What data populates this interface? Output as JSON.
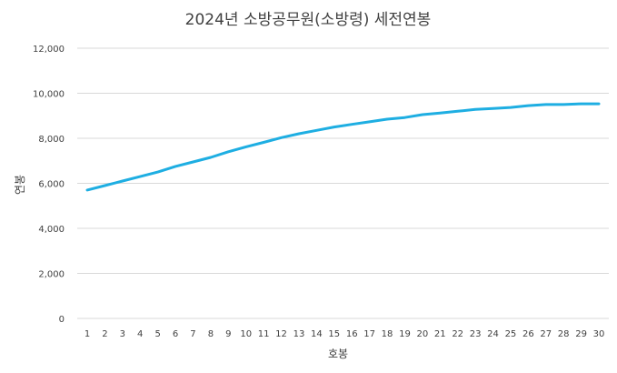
{
  "chart_data": {
    "type": "line",
    "title": "2024년 소방공무원(소방령) 세전연봉",
    "xlabel": "호봉",
    "ylabel": "연봉",
    "ylim": [
      0,
      12000
    ],
    "yticks": [
      "0",
      "2,000",
      "4,000",
      "6,000",
      "8,000",
      "10,000",
      "12,000"
    ],
    "ytick_values": [
      0,
      2000,
      4000,
      6000,
      8000,
      10000,
      12000
    ],
    "categories": [
      "1",
      "2",
      "3",
      "4",
      "5",
      "6",
      "7",
      "8",
      "9",
      "10",
      "11",
      "12",
      "13",
      "14",
      "15",
      "16",
      "17",
      "18",
      "19",
      "20",
      "21",
      "22",
      "23",
      "24",
      "25",
      "26",
      "27",
      "28",
      "29",
      "30"
    ],
    "series": [
      {
        "values": [
          5700,
          5900,
          6100,
          6300,
          6500,
          6750,
          6950,
          7150,
          7400,
          7620,
          7820,
          8030,
          8200,
          8350,
          8500,
          8620,
          8730,
          8850,
          8920,
          9050,
          9120,
          9200,
          9280,
          9320,
          9370,
          9450,
          9500,
          9500,
          9530,
          9530
        ],
        "color": "#1eaee2"
      }
    ],
    "grid": true,
    "legend": "none"
  }
}
